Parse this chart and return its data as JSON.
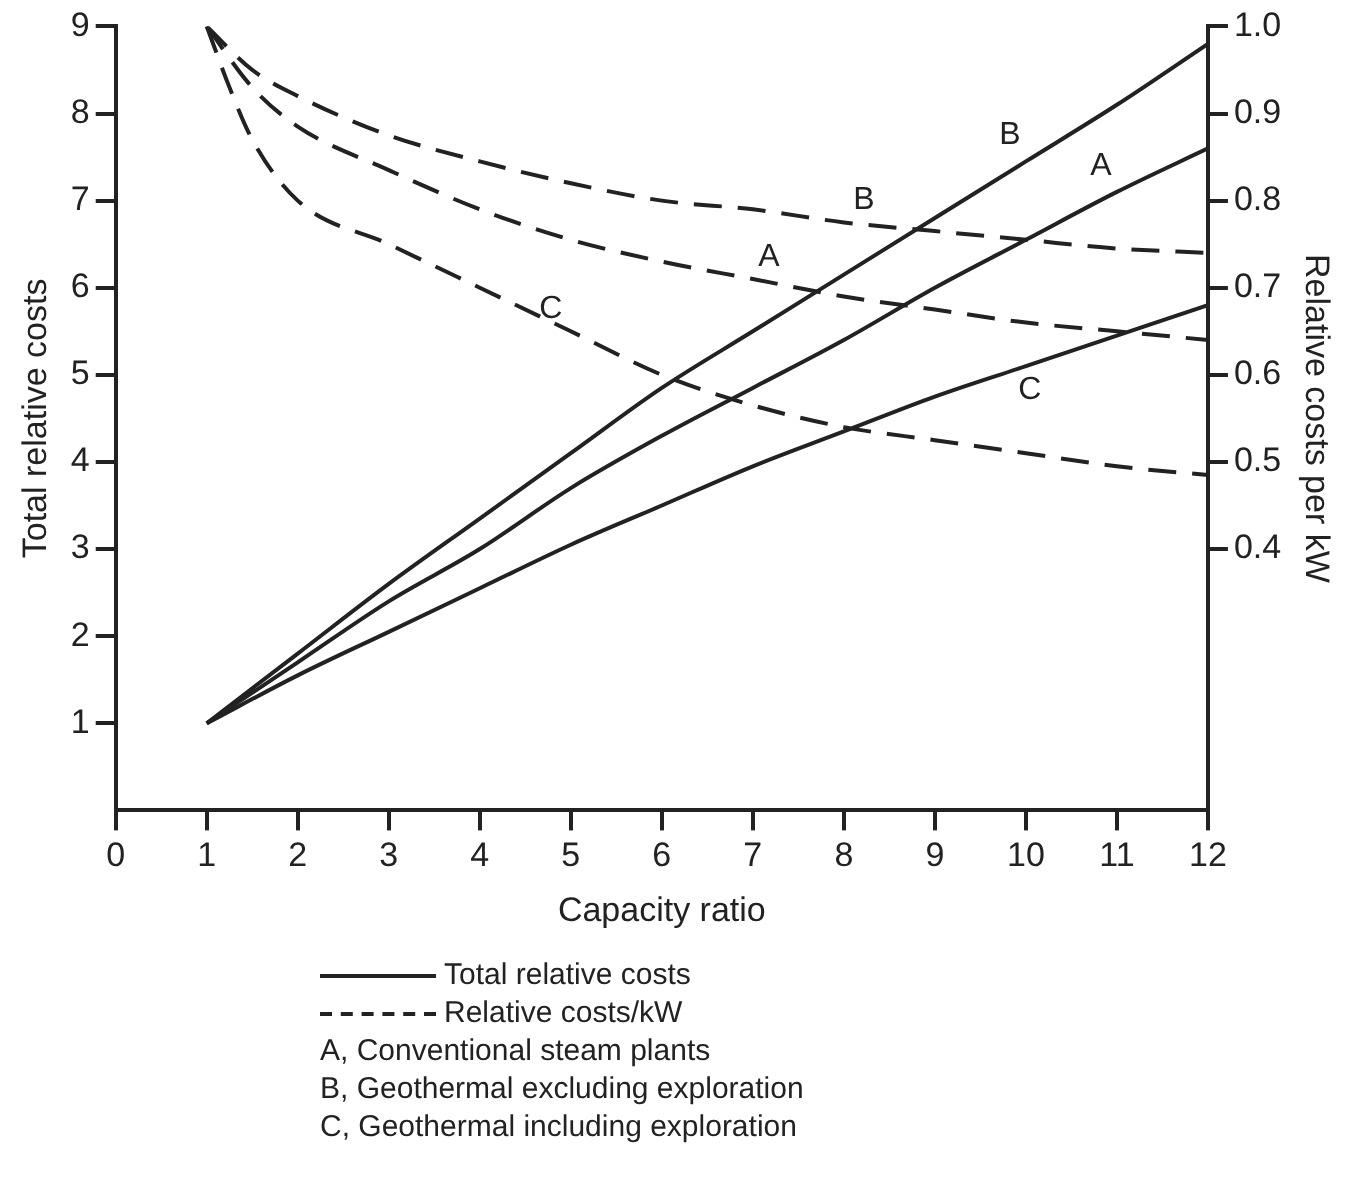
{
  "chart_data": {
    "type": "line",
    "xlabel": "Capacity ratio",
    "ylabel": "Total relative costs",
    "y2label": "Relative costs per kW",
    "xlim": [
      0,
      12
    ],
    "xticks": [
      0,
      1,
      2,
      3,
      4,
      5,
      6,
      7,
      8,
      9,
      10,
      11,
      12
    ],
    "ylim": [
      0,
      9
    ],
    "yticks": [
      1,
      2,
      3,
      4,
      5,
      6,
      7,
      8,
      9
    ],
    "y2lim": [
      0.1,
      1.0
    ],
    "y2ticks": [
      0.4,
      0.5,
      0.6,
      0.7,
      0.8,
      0.9,
      {
        "value": 1,
        "label": "1.0"
      }
    ],
    "grid": false,
    "legend": false,
    "marker": "none",
    "series": [
      {
        "name": "A",
        "color": "#222222",
        "line_style": "solid",
        "x": [
          1,
          2,
          3,
          4,
          5,
          6,
          7,
          8,
          9,
          10,
          11,
          12
        ],
        "values": [
          1,
          1.7,
          2.4,
          3.0,
          3.7,
          4.3,
          4.85,
          5.4,
          6.0,
          6.55,
          7.1,
          7.6
        ]
      },
      {
        "name": "B",
        "color": "#222222",
        "line_style": "solid",
        "x": [
          1,
          2,
          3,
          4,
          5,
          6,
          7,
          8,
          9,
          10,
          11,
          12
        ],
        "values": [
          1,
          1.8,
          2.6,
          3.35,
          4.1,
          4.85,
          5.5,
          6.15,
          6.8,
          7.45,
          8.1,
          8.8
        ]
      },
      {
        "name": "C",
        "color": "#222222",
        "line_style": "solid",
        "x": [
          1,
          2,
          3,
          4,
          5,
          6,
          7,
          8,
          9,
          10,
          11,
          12
        ],
        "values": [
          1,
          1.55,
          2.05,
          2.55,
          3.05,
          3.5,
          3.95,
          4.35,
          4.75,
          5.1,
          5.45,
          5.8
        ]
      },
      {
        "name": "A",
        "color": "#222222",
        "line_style": "dashed",
        "axis": "y2",
        "x": [
          1,
          1.5,
          2,
          3,
          4,
          5,
          6,
          7,
          8,
          9,
          10,
          11,
          12
        ],
        "values": [
          1.0,
          0.93,
          0.885,
          0.835,
          0.79,
          0.755,
          0.73,
          0.71,
          0.69,
          0.675,
          0.66,
          0.65,
          0.64
        ]
      },
      {
        "name": "B",
        "color": "#222222",
        "line_style": "dashed",
        "axis": "y2",
        "x": [
          1,
          1.5,
          2,
          3,
          4,
          5,
          6,
          7,
          8,
          9,
          10,
          11,
          12
        ],
        "values": [
          1.0,
          0.95,
          0.92,
          0.875,
          0.845,
          0.82,
          0.8,
          0.79,
          0.775,
          0.765,
          0.755,
          0.745,
          0.74
        ]
      },
      {
        "name": "C",
        "color": "#222222",
        "line_style": "dashed",
        "axis": "y2",
        "x": [
          1,
          1.25,
          1.5,
          2,
          3,
          4,
          5,
          6,
          7,
          8,
          9,
          10,
          11,
          12
        ],
        "values": [
          1.0,
          0.93,
          0.87,
          0.8,
          0.75,
          0.7,
          0.65,
          0.6,
          0.565,
          0.54,
          0.525,
          0.51,
          0.495,
          0.485
        ]
      }
    ],
    "annotations": [
      "Total relative costs",
      "Relative costs/kW",
      "A, Conventional steam plants",
      "B, Geothermal excluding exploration",
      "C, Geothermal including exploration"
    ]
  }
}
